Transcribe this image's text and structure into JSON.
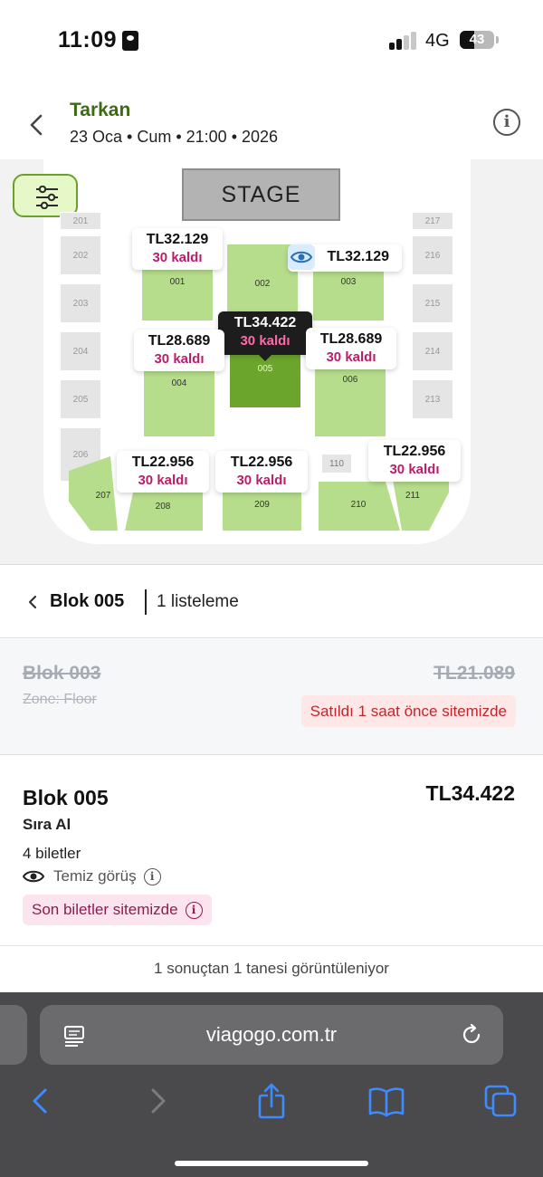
{
  "status_bar": {
    "time": "11:09",
    "network": "4G",
    "battery": "43",
    "battery_level": 0.43
  },
  "header": {
    "title": "Tarkan",
    "subtitle": "23 Oca • Cum • 21:00 • 2026",
    "title_color": "#3b6b12"
  },
  "map": {
    "stage_label": "STAGE",
    "side_sections": [
      "201",
      "202",
      "203",
      "204",
      "205",
      "206",
      "217",
      "216",
      "215",
      "214",
      "213",
      "110"
    ],
    "green_sections": [
      "001",
      "002",
      "003",
      "004",
      "005",
      "006",
      "207",
      "208",
      "209",
      "210",
      "211"
    ],
    "selected_section": "005",
    "price_tags": [
      {
        "price": "TL32.129",
        "remaining": "30 kaldı"
      },
      {
        "price": "TL32.129",
        "remaining": ""
      },
      {
        "price": "TL34.422",
        "remaining": "30 kaldı"
      },
      {
        "price": "TL28.689",
        "remaining": "30 kaldı"
      },
      {
        "price": "TL28.689",
        "remaining": "30 kaldı"
      },
      {
        "price": "TL22.956",
        "remaining": "30 kaldı"
      },
      {
        "price": "TL22.956",
        "remaining": "30 kaldı"
      },
      {
        "price": "TL22.956",
        "remaining": "30 kaldı"
      }
    ]
  },
  "blok_header": {
    "name": "Blok 005",
    "count": "1 listeleme"
  },
  "sold_listing": {
    "name": "Blok 003",
    "zone": "Zone: Floor",
    "price": "TL21.089",
    "badge": "Satıldı 1 saat önce sitemizde"
  },
  "listing": {
    "name": "Blok 005",
    "price": "TL34.422",
    "row": "Sıra Al",
    "quantity": "4 biletler",
    "view": "Temiz görüş",
    "badge": "Son biletler sitemizde"
  },
  "results_text": "1 sonuçtan 1 tanesi görüntüleniyor",
  "browser": {
    "url": "viagogo.com.tr",
    "accent": "#3d8bff"
  }
}
